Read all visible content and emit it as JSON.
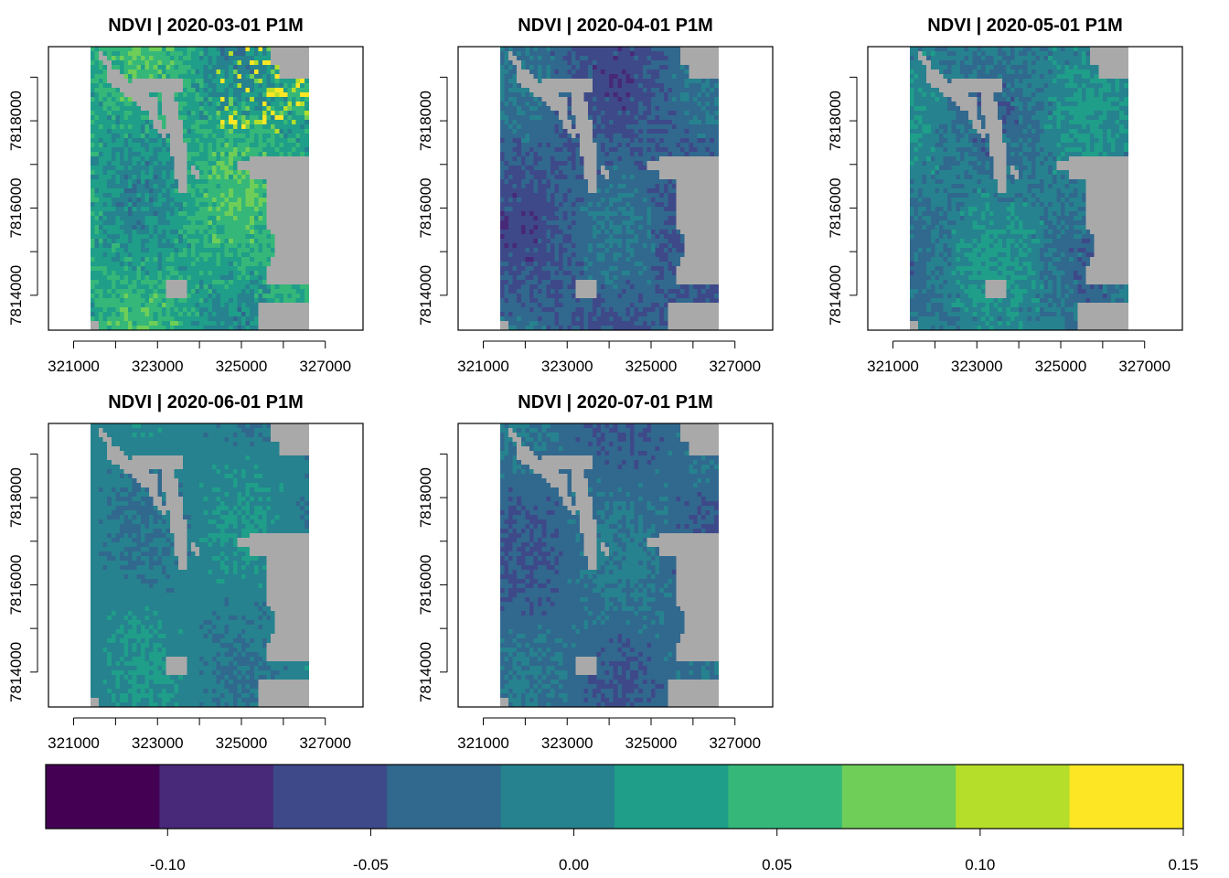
{
  "chart_data": {
    "type": "heatmap",
    "variable": "NDVI",
    "panels": [
      {
        "title": "NDVI | 2020-03-01 P1M",
        "date": "2020-03-01",
        "mean_ndvi": 0.03,
        "variation": 0.035,
        "speckle": true
      },
      {
        "title": "NDVI | 2020-04-01 P1M",
        "date": "2020-04-01",
        "mean_ndvi": -0.04,
        "variation": 0.025,
        "speckle": false
      },
      {
        "title": "NDVI | 2020-05-01 P1M",
        "date": "2020-05-01",
        "mean_ndvi": -0.01,
        "variation": 0.028,
        "speckle": false
      },
      {
        "title": "NDVI | 2020-06-01 P1M",
        "date": "2020-06-01",
        "mean_ndvi": -0.005,
        "variation": 0.018,
        "speckle": false
      },
      {
        "title": "NDVI | 2020-07-01 P1M",
        "date": "2020-07-01",
        "mean_ndvi": -0.03,
        "variation": 0.02,
        "speckle": false
      }
    ],
    "x_ticks": [
      "321000",
      "323000",
      "325000",
      "327000"
    ],
    "x_tick_values": [
      321000,
      322000,
      323000,
      324000,
      325000,
      326000,
      327000
    ],
    "y_ticks": [
      "7814000",
      "7816000",
      "7818000"
    ],
    "y_tick_values": [
      7814000,
      7815000,
      7816000,
      7817000,
      7818000,
      7819000
    ],
    "xlim": [
      320400,
      327900
    ],
    "ylim": [
      7813200,
      7819700
    ],
    "raster_extent": {
      "x": [
        321400,
        326600
      ],
      "y": [
        7813200,
        7819700
      ]
    },
    "colorbar": {
      "breaks": [
        -0.13,
        -0.102,
        -0.074,
        -0.046,
        -0.018,
        0.01,
        0.038,
        0.066,
        0.094,
        0.122,
        0.15
      ],
      "colors": [
        "#440154",
        "#482878",
        "#3E4989",
        "#31688E",
        "#26828E",
        "#1F9E89",
        "#35B779",
        "#6ECE58",
        "#B5DE2B",
        "#FDE725"
      ],
      "tick_labels": [
        "-0.10",
        "-0.05",
        "0.00",
        "0.05",
        "0.10",
        "0.15"
      ],
      "tick_values": [
        -0.1,
        -0.05,
        0.0,
        0.05,
        0.1,
        0.15
      ]
    },
    "nodata_color": "#A9A9A9"
  }
}
